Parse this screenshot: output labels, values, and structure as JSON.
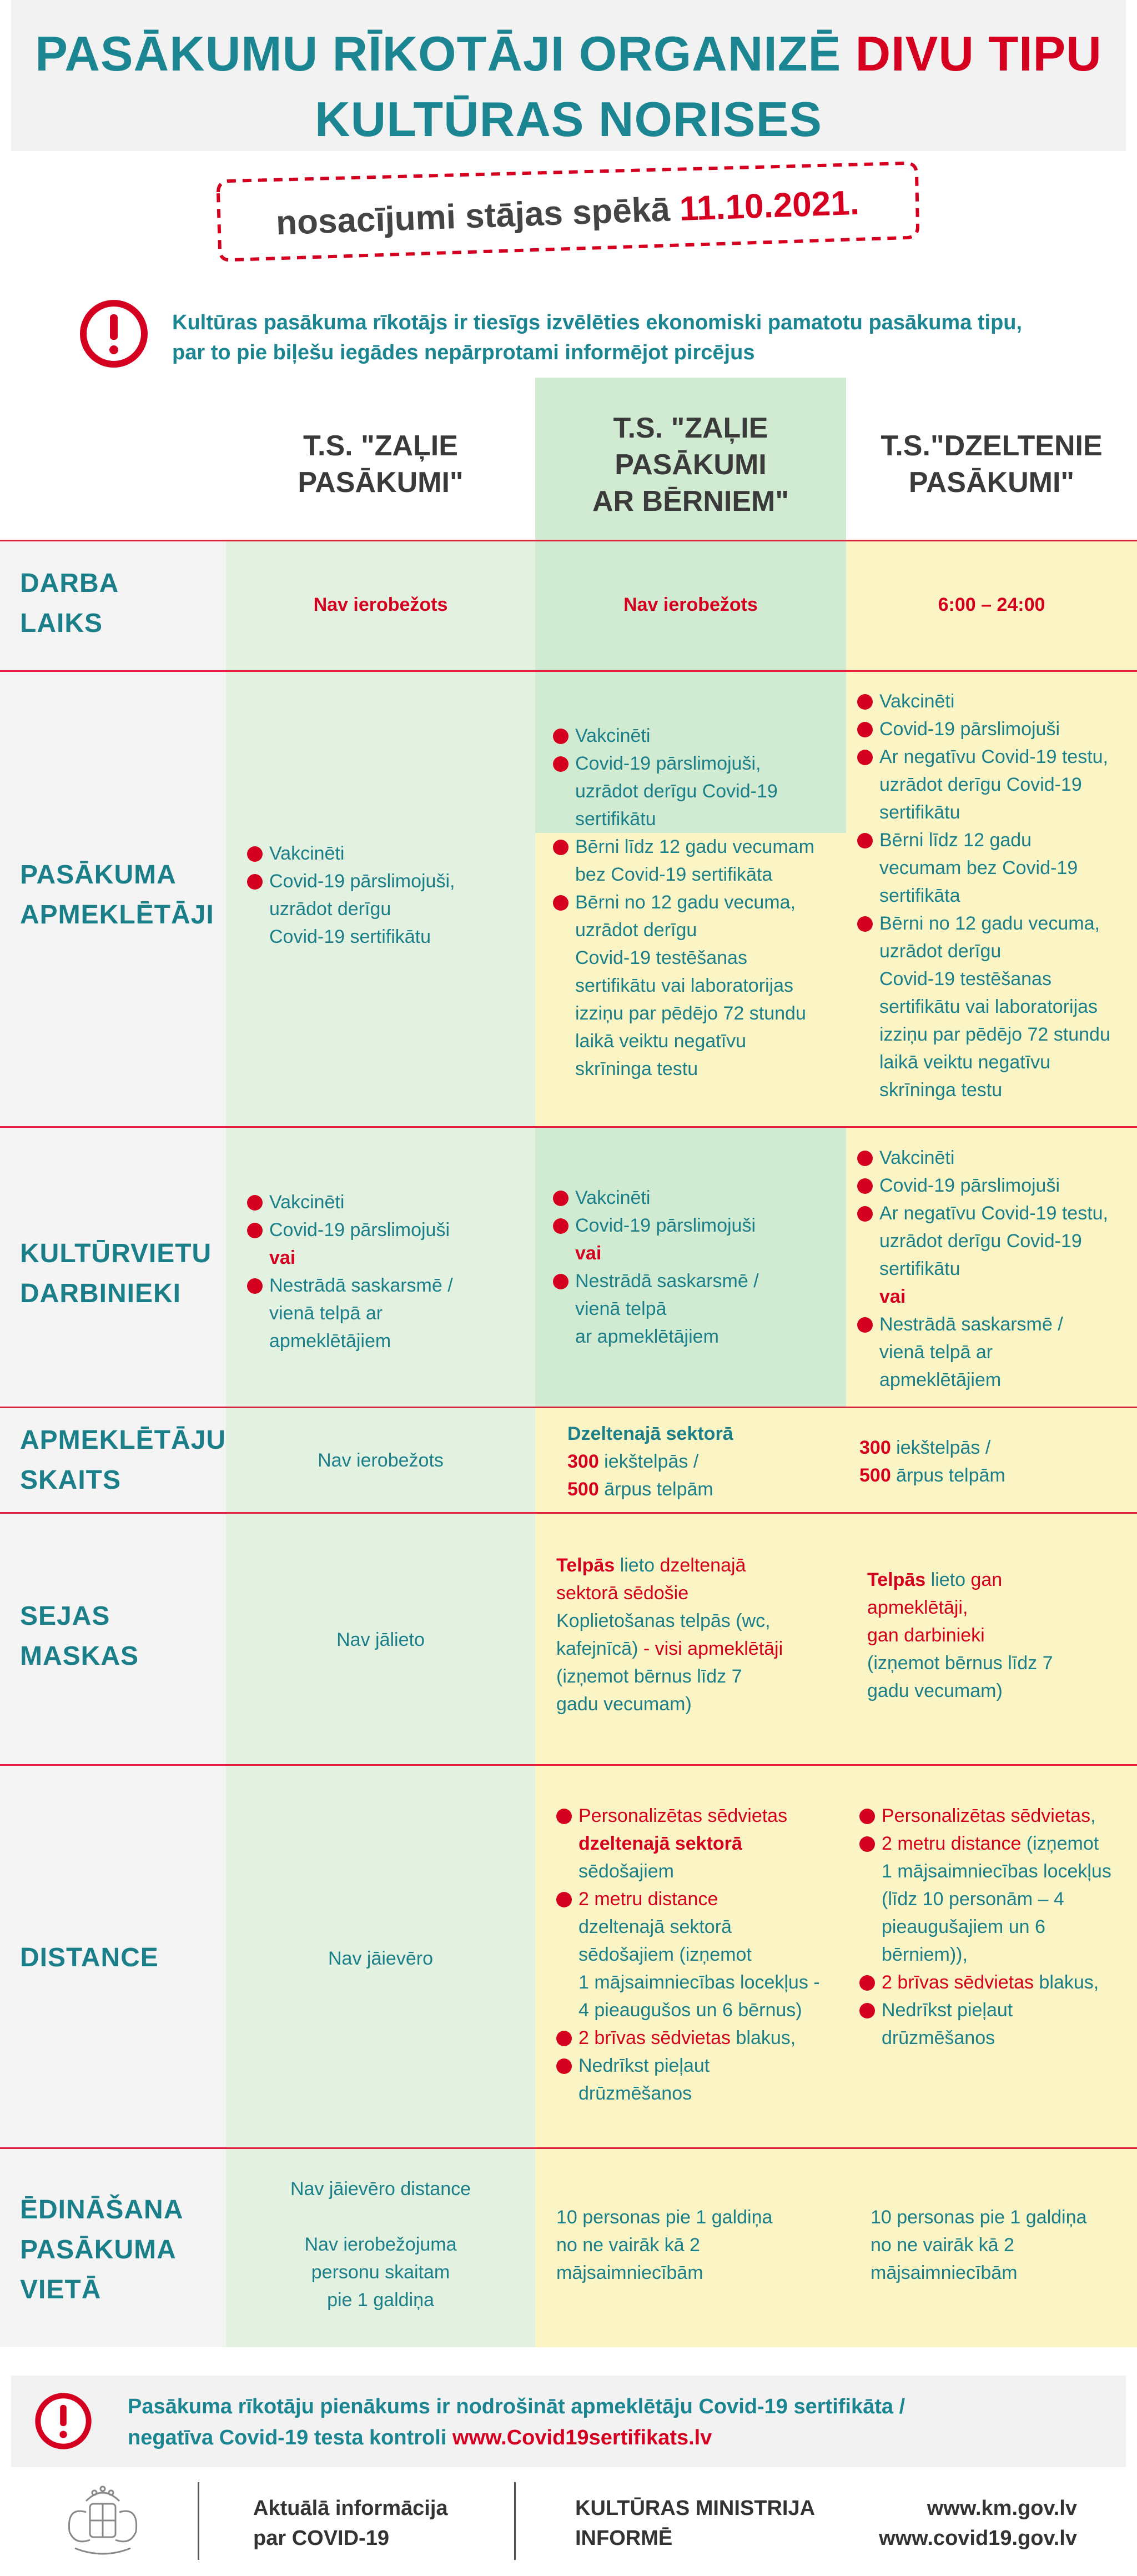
{
  "title": {
    "line1_a": "PASĀKUMU RĪKOTĀJI ORGANIZĒ ",
    "line1_b": "DIVU TIPU",
    "line2": "KULTŪRAS NORISES"
  },
  "date_banner": {
    "prefix": "nosacījumi stājas spēkā ",
    "date": "11.10.2021."
  },
  "notice": {
    "line1": "Kultūras pasākuma rīkotājs ir tiesīgs izvēlēties ekonomiski pamatotu pasākuma tipu,",
    "line2": "par to pie biļešu iegādes nepārprotami informējot pircējus"
  },
  "colors": {
    "teal": "#1b8591",
    "red": "#d5001f",
    "green_col": "#e3f2e0",
    "green_dark": "#d1ebd2",
    "yellow_col": "#fbf4c5",
    "yellow_dark": "#f8edb2",
    "grey": "#f4f4f4"
  },
  "headers": {
    "col1": [
      "T.S. \"ZAĻIE",
      "PASĀKUMI\""
    ],
    "col2": [
      "T.S. \"ZAĻIE",
      "PASĀKUMI",
      "AR BĒRNIEM\""
    ],
    "col3": [
      "T.S.\"DZELTENIE",
      "PASĀKUMI\""
    ]
  },
  "rows": {
    "darba_laiks": {
      "label": [
        "DARBA",
        "LAIKS"
      ],
      "c1": "Nav ierobežots",
      "c2": "Nav ierobežots",
      "c3": "6:00 – 24:00"
    },
    "apmekletaji": {
      "label": [
        "PASĀKUMA",
        "APMEKLĒTĀJI"
      ],
      "c1": [
        "Vakcinēti",
        "Covid-19 pārslimojuši,",
        "uzrādot derīgu",
        "Covid-19 sertifikātu"
      ],
      "c2": [
        "Vakcinēti",
        "Covid-19 pārslimojuši,",
        "uzrādot derīgu Covid-19",
        "sertifikātu",
        "Bērni līdz 12 gadu vecumam",
        "bez Covid-19 sertifikāta",
        "Bērni no 12 gadu vecuma,",
        "uzrādot derīgu",
        "Covid-19 testēšanas",
        "sertifikātu vai laboratorijas",
        "izziņu par pēdējo 72 stundu",
        "laikā veiktu negatīvu",
        "skrīninga testu"
      ],
      "c3": [
        "Vakcinēti",
        "Covid-19 pārslimojuši",
        "Ar negatīvu Covid-19 testu,",
        "uzrādot derīgu Covid-19",
        "sertifikātu",
        "Bērni līdz 12 gadu",
        "vecumam bez Covid-19",
        "sertifikāta",
        "Bērni no 12 gadu vecuma,",
        "uzrādot derīgu",
        "Covid-19 testēšanas",
        "sertifikātu vai laboratorijas",
        "izziņu par pēdējo 72 stundu",
        "laikā veiktu negatīvu",
        "skrīninga testu"
      ]
    },
    "darbinieki": {
      "label": [
        "KULTŪRVIETU",
        "DARBINIEKI"
      ],
      "c1": [
        "Vakcinēti",
        "Covid-19 pārslimojuši",
        "vai",
        "Nestrādā saskarsmē /",
        "vienā telpā ar",
        "apmeklētājiem"
      ],
      "c2": [
        "Vakcinēti",
        "Covid-19 pārslimojuši",
        "vai",
        "Nestrādā saskarsmē /",
        "vienā telpā",
        "ar apmeklētājiem"
      ],
      "c3": [
        "Vakcinēti",
        "Covid-19 pārslimojuši",
        "Ar negatīvu Covid-19 testu,",
        "uzrādot derīgu Covid-19",
        "sertifikātu",
        "vai",
        "Nestrādā saskarsmē /",
        "vienā telpā ar",
        "apmeklētājiem"
      ]
    },
    "skaits": {
      "label": [
        "APMEKLĒTĀJU",
        "SKAITS"
      ],
      "c1": "Nav ierobežots",
      "c2": {
        "head": "Dzeltenajā sektorā",
        "n1": "300",
        "t1": " iekštelpās /",
        "n2": "500",
        "t2": " ārpus telpām"
      },
      "c3": {
        "n1": "300",
        "t1": " iekštelpās /",
        "n2": "500",
        "t2": " ārpus telpām"
      }
    },
    "maskas": {
      "label": [
        "SEJAS",
        "MASKAS"
      ],
      "c1": "Nav jālieto",
      "c2": {
        "a": "Telpās",
        "b": " lieto ",
        "c": "dzeltenajā",
        "d": "sektorā sēdošie",
        "e": "Koplietošanas telpās (wc,",
        "f": "kafejnīcā)",
        "g": " - visi apmeklētāji",
        "h": "(izņemot bērnus līdz 7",
        "i": "gadu vecumam)"
      },
      "c3": {
        "a": "Telpās",
        "b": " lieto ",
        "c": "gan",
        "d": "apmeklētāji,",
        "e": "gan darbinieki",
        "f": "(izņemot bērnus līdz 7",
        "g": "gadu vecumam)"
      }
    },
    "distance": {
      "label": [
        "DISTANCE"
      ],
      "c1": "Nav jāievēro",
      "c2": {
        "l1": "Personalizētas sēdvietas",
        "l2": "dzeltenajā sektorā",
        "l3": "sēdošajiem",
        "l4": "2 metru distance",
        "l5": "dzeltenajā sektorā",
        "l6": "sēdošajiem (izņemot",
        "l7": "1 mājsaimniecības locekļus -",
        "l8": "4 pieaugušos un 6 bērnus)",
        "l9a": "2 brīvas sēdvietas",
        "l9b": " blakus,",
        "l10": "Nedrīkst pieļaut",
        "l11": "drūzmēšanos"
      },
      "c3": {
        "l1": "Personalizētas sēdvietas",
        "l1b": ",",
        "l2a": "2 metru distance",
        "l2b": " (izņemot",
        "l3": "1 mājsaimniecības locekļus",
        "l4": "(līdz 10 personām – 4",
        "l5": "pieaugušajiem un 6",
        "l6": "bērniem)),",
        "l7a": "2 brīvas sēdvietas",
        "l7b": " blakus,",
        "l8": "Nedrīkst pieļaut",
        "l9": "drūzmēšanos"
      }
    },
    "edinasana": {
      "label": [
        "ĒDINĀŠANA",
        "PASĀKUMA",
        "VIETĀ"
      ],
      "c1": [
        "Nav jāievēro distance",
        "",
        "Nav ierobežojuma",
        "personu skaitam",
        "pie 1 galdiņa"
      ],
      "c2": [
        "10 personas pie 1 galdiņa",
        "no ne vairāk kā 2",
        "mājsaimniecībām"
      ],
      "c3": [
        "10 personas pie 1 galdiņa",
        "no ne vairāk kā 2",
        "mājsaimniecībām"
      ]
    }
  },
  "footer_notice": {
    "line1": "Pasākuma rīkotāju pienākums ir nodrošināt apmeklētāju Covid-19 sertifikāta /",
    "line2": "negatīva Covid-19 testa kontroli ",
    "link": "www.Covid19sertifikats.lv"
  },
  "footer": {
    "info1": "Aktuālā informācija",
    "info2": "par COVID-19",
    "ministry1": "KULTŪRAS MINISTRIJA",
    "ministry2": "INFORMĒ",
    "url1": "www.km.gov.lv",
    "url2": "www.covid19.gov.lv"
  }
}
